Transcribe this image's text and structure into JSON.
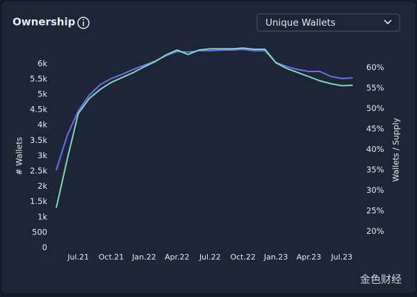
{
  "header": {
    "title": "Ownership",
    "dropdown": "Unique Wallets"
  },
  "watermark": "金色财经",
  "chart_data": {
    "type": "line",
    "y_label": "# Wallets",
    "y2_label": "Wallets / Supply",
    "x": [
      "2021-05",
      "2021-06",
      "2021-07",
      "2021-08",
      "2021-09",
      "2021-10",
      "2021-11",
      "2021-12",
      "2022-01",
      "2022-02",
      "2022-03",
      "2022-04",
      "2022-05",
      "2022-06",
      "2022-07",
      "2022-08",
      "2022-09",
      "2022-10",
      "2022-11",
      "2022-12",
      "2023-01",
      "2023-02",
      "2023-03",
      "2023-04",
      "2023-05",
      "2023-06",
      "2023-07",
      "2023-08"
    ],
    "xticks": [
      {
        "value": "2021-07",
        "label": "Jul.21"
      },
      {
        "value": "2021-10",
        "label": "Oct.21"
      },
      {
        "value": "2022-01",
        "label": "Jan.22"
      },
      {
        "value": "2022-04",
        "label": "Apr.22"
      },
      {
        "value": "2022-07",
        "label": "Jul.22"
      },
      {
        "value": "2022-10",
        "label": "Oct.22"
      },
      {
        "value": "2023-01",
        "label": "Jan.23"
      },
      {
        "value": "2023-04",
        "label": "Apr.23"
      },
      {
        "value": "2023-07",
        "label": "Jul.23"
      }
    ],
    "ylim": [
      -475,
      6540
    ],
    "yticks": [
      0,
      500,
      {
        "value": 1000,
        "label": "1k"
      },
      {
        "value": 1500,
        "label": "1.5k"
      },
      {
        "value": 2000,
        "label": "2k"
      },
      {
        "value": 2500,
        "label": "2.5k"
      },
      {
        "value": 3000,
        "label": "3k"
      },
      {
        "value": 3500,
        "label": "3.5k"
      },
      {
        "value": 4000,
        "label": "4k"
      },
      {
        "value": 4500,
        "label": "4.5k"
      },
      {
        "value": 5000,
        "label": "5k"
      },
      {
        "value": 5500,
        "label": "5.5k"
      },
      {
        "value": 6000,
        "label": "6k"
      }
    ],
    "y2lim": [
      12.5,
      65
    ],
    "y2ticks": [
      {
        "value": 20,
        "label": "20%"
      },
      {
        "value": 25,
        "label": "25%"
      },
      {
        "value": 30,
        "label": "30%"
      },
      {
        "value": 35,
        "label": "35%"
      },
      {
        "value": 40,
        "label": "40%"
      },
      {
        "value": 45,
        "label": "45%"
      },
      {
        "value": 50,
        "label": "50%"
      },
      {
        "value": 55,
        "label": "55%"
      },
      {
        "value": 60,
        "label": "60%"
      }
    ],
    "grid": false,
    "series": [
      {
        "color": "#6e6ff0",
        "values": [
          2530,
          3665,
          4457,
          4977,
          5317,
          5520,
          5656,
          5814,
          5950,
          6086,
          6267,
          6403,
          6380,
          6425,
          6425,
          6448,
          6448,
          6470,
          6425,
          6425,
          6041,
          5905,
          5814,
          5747,
          5747,
          5588,
          5520,
          5543
        ]
      },
      {
        "color": "#7fdcc3",
        "axis": "y2",
        "values": [
          25.8,
          37.7,
          48.8,
          52.5,
          54.7,
          56.4,
          57.6,
          58.8,
          60.2,
          61.5,
          63.1,
          64.3,
          63.2,
          64.3,
          64.6,
          64.6,
          64.6,
          64.8,
          64.5,
          64.5,
          61.2,
          59.8,
          58.8,
          57.8,
          56.8,
          56.1,
          55.6,
          55.7
        ]
      }
    ]
  }
}
